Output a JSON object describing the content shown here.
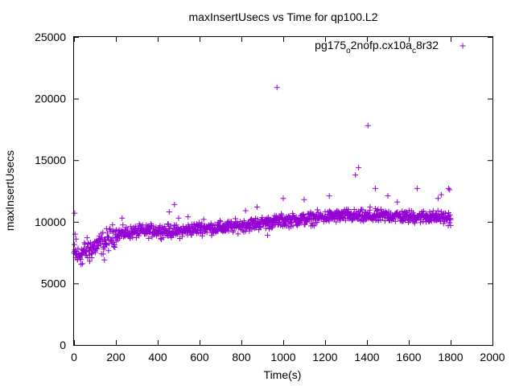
{
  "chart_data": {
    "type": "scatter",
    "title": "maxInsertUsecs vs Time for qp100.L2",
    "xlabel": "Time(s)",
    "ylabel": "maxInsertUsecs",
    "xlim": [
      0,
      2000
    ],
    "ylim": [
      0,
      25000
    ],
    "xticks": [
      0,
      200,
      400,
      600,
      800,
      1000,
      1200,
      1400,
      1600,
      1800,
      2000
    ],
    "yticks": [
      0,
      5000,
      10000,
      15000,
      20000,
      25000
    ],
    "grid": false,
    "legend_position": "top-right",
    "marker": "plus",
    "series": [
      {
        "name_parts": [
          "pg175",
          "o",
          "2nofp.cx10a",
          "c",
          "8r32"
        ],
        "color": "#9400d3",
        "trend": [
          [
            0,
            7400
          ],
          [
            20,
            7200
          ],
          [
            50,
            7600
          ],
          [
            100,
            8000
          ],
          [
            150,
            8400
          ],
          [
            200,
            9000
          ],
          [
            300,
            9200
          ],
          [
            400,
            9300
          ],
          [
            500,
            9200
          ],
          [
            600,
            9500
          ],
          [
            700,
            9500
          ],
          [
            800,
            9700
          ],
          [
            900,
            9900
          ],
          [
            1000,
            10100
          ],
          [
            1100,
            10200
          ],
          [
            1200,
            10400
          ],
          [
            1300,
            10500
          ],
          [
            1400,
            10400
          ],
          [
            1500,
            10500
          ],
          [
            1600,
            10400
          ],
          [
            1700,
            10400
          ],
          [
            1800,
            10300
          ]
        ],
        "outliers": [
          [
            3,
            10700
          ],
          [
            5,
            9000
          ],
          [
            10,
            8600
          ],
          [
            40,
            6600
          ],
          [
            75,
            6800
          ],
          [
            145,
            6900
          ],
          [
            230,
            10300
          ],
          [
            380,
            9600
          ],
          [
            480,
            11400
          ],
          [
            455,
            10800
          ],
          [
            500,
            10300
          ],
          [
            545,
            10400
          ],
          [
            620,
            10200
          ],
          [
            700,
            10000
          ],
          [
            820,
            10900
          ],
          [
            875,
            11200
          ],
          [
            925,
            8900
          ],
          [
            970,
            20900
          ],
          [
            1000,
            11900
          ],
          [
            1100,
            11800
          ],
          [
            1220,
            12100
          ],
          [
            1310,
            11000
          ],
          [
            1345,
            13800
          ],
          [
            1360,
            14400
          ],
          [
            1405,
            17800
          ],
          [
            1415,
            11200
          ],
          [
            1440,
            12700
          ],
          [
            1500,
            12100
          ],
          [
            1545,
            11600
          ],
          [
            1640,
            12700
          ],
          [
            1700,
            10800
          ],
          [
            1740,
            11900
          ],
          [
            1755,
            12200
          ],
          [
            1790,
            12700
          ],
          [
            1795,
            12600
          ],
          [
            1800,
            9700
          ]
        ]
      }
    ]
  }
}
